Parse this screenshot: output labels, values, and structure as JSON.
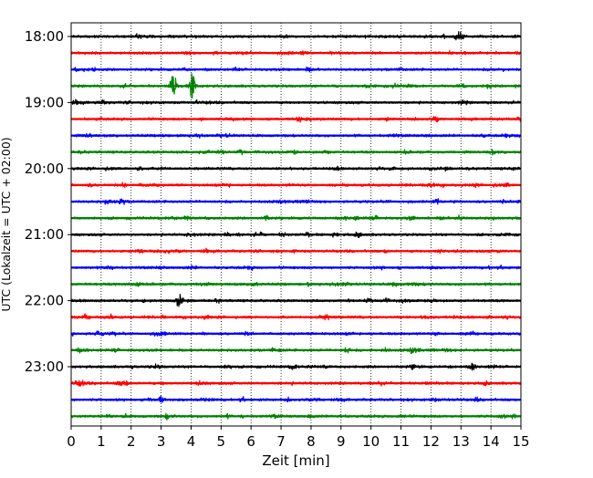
{
  "chart_data": {
    "type": "line",
    "title": "",
    "xlabel": "Zeit  [min]",
    "ylabel": "UTC (Lokalzeit = UTC + 02:00)",
    "xlim": [
      0,
      15
    ],
    "x_ticks": [
      0,
      1,
      2,
      3,
      4,
      5,
      6,
      7,
      8,
      9,
      10,
      11,
      12,
      13,
      14,
      15
    ],
    "y_tick_labels": [
      "18:00",
      "19:00",
      "20:00",
      "21:00",
      "22:00",
      "23:00"
    ],
    "grid": "vertical dotted",
    "trace_interval_min": 15,
    "color_cycle": [
      "#000000",
      "#ff0000",
      "#0000ff",
      "#008000"
    ],
    "series": [
      {
        "start": "18:00",
        "color": "#000000",
        "events": [
          {
            "t": 2.2,
            "a": 0.8
          },
          {
            "t": 12.9,
            "a": 2.2
          }
        ]
      },
      {
        "start": "18:15",
        "color": "#ff0000",
        "events": [
          {
            "t": 12.6,
            "a": 0.6
          }
        ]
      },
      {
        "start": "18:30",
        "color": "#0000ff",
        "events": [
          {
            "t": 5.5,
            "a": 0.5
          }
        ]
      },
      {
        "start": "18:45",
        "color": "#008000",
        "events": [
          {
            "t": 3.4,
            "a": 5.5
          },
          {
            "t": 4.05,
            "a": 6.5
          },
          {
            "t": 13.9,
            "a": 1.0
          }
        ]
      },
      {
        "start": "19:00",
        "color": "#000000",
        "events": [
          {
            "t": 1.1,
            "a": 0.5
          }
        ]
      },
      {
        "start": "19:15",
        "color": "#ff0000",
        "events": [
          {
            "t": 7.6,
            "a": 1.2
          },
          {
            "t": 12.2,
            "a": 1.0
          }
        ]
      },
      {
        "start": "19:30",
        "color": "#0000ff",
        "events": [
          {
            "t": 14.5,
            "a": 0.6
          }
        ]
      },
      {
        "start": "19:45",
        "color": "#008000",
        "events": [
          {
            "t": 4.6,
            "a": 0.5
          }
        ]
      },
      {
        "start": "20:00",
        "color": "#000000",
        "events": [
          {
            "t": 2.3,
            "a": 1.0
          }
        ]
      },
      {
        "start": "20:15",
        "color": "#ff0000",
        "events": [
          {
            "t": 1.8,
            "a": 1.0
          },
          {
            "t": 5.2,
            "a": 0.8
          },
          {
            "t": 14.2,
            "a": 0.8
          }
        ]
      },
      {
        "start": "20:30",
        "color": "#0000ff",
        "events": [
          {
            "t": 12.2,
            "a": 1.0
          },
          {
            "t": 14.9,
            "a": 0.9
          }
        ]
      },
      {
        "start": "20:45",
        "color": "#008000",
        "events": [
          {
            "t": 6.5,
            "a": 1.0
          },
          {
            "t": 13.0,
            "a": 0.7
          }
        ]
      },
      {
        "start": "21:00",
        "color": "#000000",
        "events": [
          {
            "t": 5.2,
            "a": 0.6
          },
          {
            "t": 8.8,
            "a": 0.9
          }
        ]
      },
      {
        "start": "21:15",
        "color": "#ff0000",
        "events": [
          {
            "t": 2.3,
            "a": 0.8
          }
        ]
      },
      {
        "start": "21:30",
        "color": "#0000ff",
        "events": [
          {
            "t": 1.2,
            "a": 0.9
          },
          {
            "t": 14.3,
            "a": 0.8
          }
        ]
      },
      {
        "start": "21:45",
        "color": "#008000",
        "events": [
          {
            "t": 6.1,
            "a": 1.2
          },
          {
            "t": 10.8,
            "a": 1.0
          }
        ]
      },
      {
        "start": "22:00",
        "color": "#000000",
        "events": [
          {
            "t": 3.6,
            "a": 1.5
          }
        ]
      },
      {
        "start": "22:15",
        "color": "#ff0000",
        "events": [
          {
            "t": 1.3,
            "a": 0.8
          },
          {
            "t": 14.5,
            "a": 0.8
          }
        ]
      },
      {
        "start": "22:30",
        "color": "#0000ff",
        "events": [
          {
            "t": 1.4,
            "a": 0.6
          }
        ]
      },
      {
        "start": "22:45",
        "color": "#008000",
        "events": [
          {
            "t": 9.2,
            "a": 1.3
          },
          {
            "t": 10.5,
            "a": 1.0
          },
          {
            "t": 11.4,
            "a": 1.5
          }
        ]
      },
      {
        "start": "23:00",
        "color": "#000000",
        "events": [
          {
            "t": 7.4,
            "a": 1.2
          },
          {
            "t": 13.4,
            "a": 1.6
          }
        ]
      },
      {
        "start": "23:15",
        "color": "#ff0000",
        "events": [
          {
            "t": 1.8,
            "a": 1.2
          },
          {
            "t": 13.8,
            "a": 1.0
          }
        ]
      },
      {
        "start": "23:30",
        "color": "#0000ff",
        "events": [
          {
            "t": 3.0,
            "a": 1.3
          },
          {
            "t": 5.7,
            "a": 1.2
          }
        ]
      },
      {
        "start": "23:45",
        "color": "#008000",
        "events": [
          {
            "t": 3.2,
            "a": 0.9
          },
          {
            "t": 14.8,
            "a": 0.9
          }
        ]
      }
    ]
  }
}
